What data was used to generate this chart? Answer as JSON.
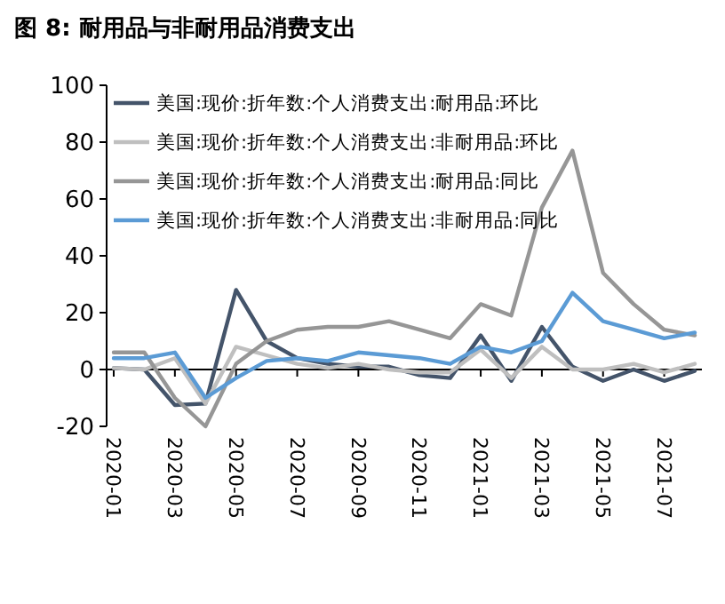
{
  "chart_data": {
    "type": "line",
    "title": "图 8:  耐用品与非耐用品消费支出",
    "categories": [
      "2020-01",
      null,
      "2020-03",
      null,
      "2020-05",
      null,
      "2020-07",
      null,
      "2020-09",
      null,
      "2020-11",
      null,
      "2021-01",
      null,
      "2021-03",
      null,
      "2021-05",
      null,
      "2021-07",
      null
    ],
    "series": [
      {
        "name": "美国:现价:折年数:个人消费支出:耐用品:环比",
        "color": "#44546a",
        "values": [
          0.5,
          0,
          -12.5,
          -12,
          28,
          10,
          4,
          2,
          1,
          1,
          -2,
          -3,
          12,
          -4,
          15,
          1,
          -4,
          0,
          -4,
          -0.5
        ]
      },
      {
        "name": "美国:现价:折年数:个人消费支出:非耐用品:环比",
        "color": "#bfbfbf",
        "values": [
          0.5,
          0,
          4,
          -12,
          8,
          5,
          2,
          0.5,
          2,
          0,
          -1,
          -1,
          7,
          -3,
          8,
          0,
          0,
          2,
          -1,
          2
        ]
      },
      {
        "name": "美国:现价:折年数:个人消费支出:耐用品:同比",
        "color": "#969696",
        "values": [
          6,
          6,
          -10,
          -20,
          2,
          10,
          14,
          15,
          15,
          17,
          14,
          11,
          23,
          19,
          57,
          77,
          34,
          23,
          14,
          12
        ]
      },
      {
        "name": "美国:现价:折年数:个人消费支出:非耐用品:同比",
        "color": "#5b9bd5",
        "values": [
          4,
          4,
          6,
          -10,
          -3,
          3,
          4,
          3,
          6,
          5,
          4,
          2,
          8,
          6,
          10,
          27,
          17,
          14,
          11,
          13
        ]
      }
    ],
    "ref_lines": [
      {
        "axis": "y",
        "value": 0,
        "color": "#000000"
      }
    ],
    "ylim": [
      -20,
      100
    ],
    "yticks": [
      -20,
      0,
      20,
      40,
      60,
      80,
      100
    ],
    "grid": false,
    "legend": "top left"
  }
}
